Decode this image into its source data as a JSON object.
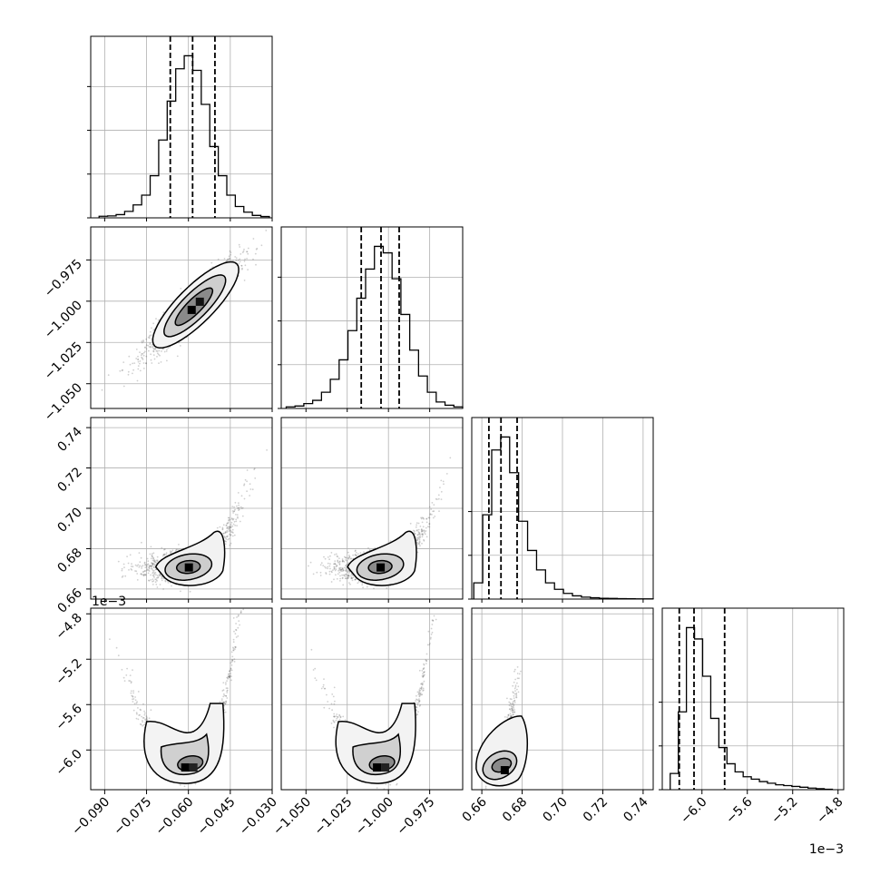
{
  "chart_data": {
    "type": "corner",
    "grid": true,
    "dimensions": [
      {
        "id": "p0",
        "range": [
          -0.095,
          -0.03
        ],
        "ticks": [
          -0.09,
          -0.075,
          -0.06,
          -0.045,
          -0.03
        ],
        "tick_labels": [
          "−0.090",
          "−0.075",
          "−0.060",
          "−0.045",
          "−0.030"
        ],
        "scale_label": "",
        "quantiles": [
          -0.0665,
          -0.0585,
          -0.0505
        ],
        "hist_y_ticks": [
          0,
          0.28,
          0.56,
          0.84
        ]
      },
      {
        "id": "p1",
        "range": [
          -1.065,
          -0.955
        ],
        "ticks": [
          -1.05,
          -1.025,
          -1.0,
          -0.975
        ],
        "tick_labels": [
          "−1.050",
          "−1.025",
          "−1.000",
          "−0.975"
        ],
        "scale_label": "",
        "quantiles": [
          -1.0165,
          -1.0045,
          -0.9935
        ],
        "hist_y_ticks": [
          0,
          0.28,
          0.56,
          0.84
        ]
      },
      {
        "id": "p2",
        "range": [
          0.655,
          0.745
        ],
        "ticks": [
          0.66,
          0.68,
          0.7,
          0.72,
          0.74
        ],
        "tick_labels": [
          "0.66",
          "0.68",
          "0.70",
          "0.72",
          "0.74"
        ],
        "scale_label": "",
        "quantiles": [
          0.6635,
          0.6695,
          0.6775
        ],
        "hist_y_ticks": [
          0,
          0.26,
          0.52
        ]
      },
      {
        "id": "p3",
        "range": [
          -6.35,
          -4.75
        ],
        "ticks": [
          -6.0,
          -5.6,
          -5.2,
          -4.8
        ],
        "tick_labels": [
          "−6.0",
          "−5.6",
          "−5.2",
          "−4.8"
        ],
        "scale_label": "1e−3",
        "quantiles": [
          -6.2,
          -6.07,
          -5.8
        ],
        "hist_y_ticks": [
          0,
          0.45,
          0.9
        ]
      }
    ],
    "histograms": [
      [
        0.01,
        0.012,
        0.02,
        0.04,
        0.08,
        0.14,
        0.26,
        0.48,
        0.72,
        0.92,
        1.0,
        0.91,
        0.7,
        0.44,
        0.26,
        0.14,
        0.07,
        0.035,
        0.015,
        0.008
      ],
      [
        0.01,
        0.015,
        0.03,
        0.05,
        0.1,
        0.18,
        0.3,
        0.48,
        0.68,
        0.86,
        1.0,
        0.96,
        0.8,
        0.58,
        0.36,
        0.2,
        0.1,
        0.04,
        0.02,
        0.01
      ],
      [
        0.1,
        0.52,
        0.92,
        1.0,
        0.78,
        0.48,
        0.3,
        0.18,
        0.1,
        0.06,
        0.035,
        0.02,
        0.012,
        0.008,
        0.005,
        0.004,
        0.003,
        0.002,
        0.001,
        0.001
      ],
      [
        0.1,
        0.48,
        1.0,
        0.93,
        0.7,
        0.44,
        0.26,
        0.16,
        0.11,
        0.08,
        0.065,
        0.05,
        0.04,
        0.03,
        0.025,
        0.02,
        0.015,
        0.01,
        0.006,
        0.003
      ]
    ],
    "pair_scatter": [
      {
        "x": 0,
        "y": 1,
        "center": [
          -0.059,
          -1.005
        ],
        "shape": "ellipse_correlated"
      },
      {
        "x": 0,
        "y": 2,
        "center": [
          -0.06,
          0.67
        ],
        "shape": "banana_up_right"
      },
      {
        "x": 1,
        "y": 2,
        "center": [
          -1.005,
          0.67
        ],
        "shape": "banana_up_right"
      },
      {
        "x": 0,
        "y": 3,
        "center": [
          -0.06,
          -6.15
        ],
        "shape": "u_shape"
      },
      {
        "x": 1,
        "y": 3,
        "center": [
          -1.005,
          -6.15
        ],
        "shape": "u_shape"
      },
      {
        "x": 2,
        "y": 3,
        "center": [
          0.668,
          -6.15
        ],
        "shape": "tail_up_right"
      }
    ]
  }
}
